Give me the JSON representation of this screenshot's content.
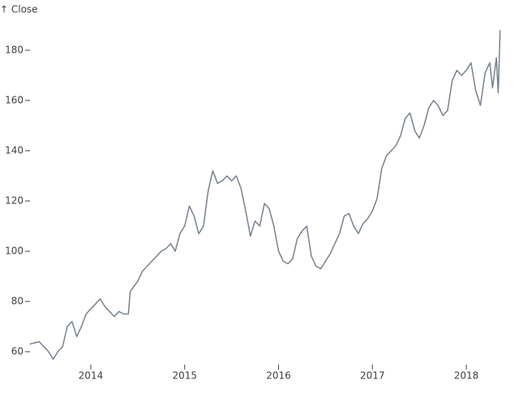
{
  "chart_data": {
    "type": "line",
    "y_label": "↑ Close",
    "color": "#76818e",
    "x": [
      2013.35,
      2013.45,
      2013.55,
      2013.6,
      2013.65,
      2013.7,
      2013.75,
      2013.8,
      2013.85,
      2013.9,
      2013.95,
      2014.0,
      2014.05,
      2014.1,
      2014.15,
      2014.2,
      2014.25,
      2014.3,
      2014.35,
      2014.4,
      2014.42,
      2014.5,
      2014.55,
      2014.6,
      2014.65,
      2014.7,
      2014.75,
      2014.8,
      2014.85,
      2014.9,
      2014.95,
      2015.0,
      2015.05,
      2015.1,
      2015.15,
      2015.2,
      2015.25,
      2015.3,
      2015.35,
      2015.4,
      2015.45,
      2015.5,
      2015.55,
      2015.6,
      2015.65,
      2015.7,
      2015.75,
      2015.8,
      2015.85,
      2015.9,
      2015.95,
      2016.0,
      2016.05,
      2016.1,
      2016.15,
      2016.2,
      2016.25,
      2016.3,
      2016.35,
      2016.4,
      2016.45,
      2016.5,
      2016.55,
      2016.6,
      2016.65,
      2016.7,
      2016.75,
      2016.8,
      2016.85,
      2016.9,
      2016.95,
      2017.0,
      2017.05,
      2017.1,
      2017.15,
      2017.2,
      2017.25,
      2017.3,
      2017.35,
      2017.4,
      2017.45,
      2017.5,
      2017.55,
      2017.6,
      2017.65,
      2017.7,
      2017.75,
      2017.8,
      2017.85,
      2017.9,
      2017.95,
      2018.0,
      2018.05,
      2018.1,
      2018.15,
      2018.2,
      2018.25,
      2018.28,
      2018.32,
      2018.34,
      2018.36
    ],
    "values": [
      63,
      64,
      60,
      57,
      60,
      62,
      70,
      72,
      66,
      70,
      75,
      77,
      79,
      81,
      78,
      76,
      74,
      76,
      75,
      75,
      84,
      88,
      92,
      94,
      96,
      98,
      100,
      101,
      103,
      100,
      107,
      110,
      118,
      114,
      107,
      110,
      124,
      132,
      127,
      128,
      130,
      128,
      130,
      125,
      116,
      106,
      112,
      110,
      119,
      117,
      110,
      100,
      96,
      95,
      97,
      105,
      108,
      110,
      98,
      94,
      93,
      96,
      99,
      103,
      107,
      114,
      115,
      110,
      107,
      111,
      113,
      116,
      121,
      133,
      138,
      140,
      142,
      146,
      153,
      155,
      148,
      145,
      150,
      157,
      160,
      158,
      154,
      156,
      168,
      172,
      170,
      172,
      175,
      164,
      158,
      171,
      175,
      165,
      177,
      163,
      188
    ],
    "xlim": [
      2013.35,
      2018.36
    ],
    "xticks": [
      2014,
      2015,
      2016,
      2017,
      2018
    ],
    "ylim": [
      56,
      191
    ],
    "yticks": [
      60,
      80,
      100,
      120,
      140,
      160,
      180
    ]
  }
}
